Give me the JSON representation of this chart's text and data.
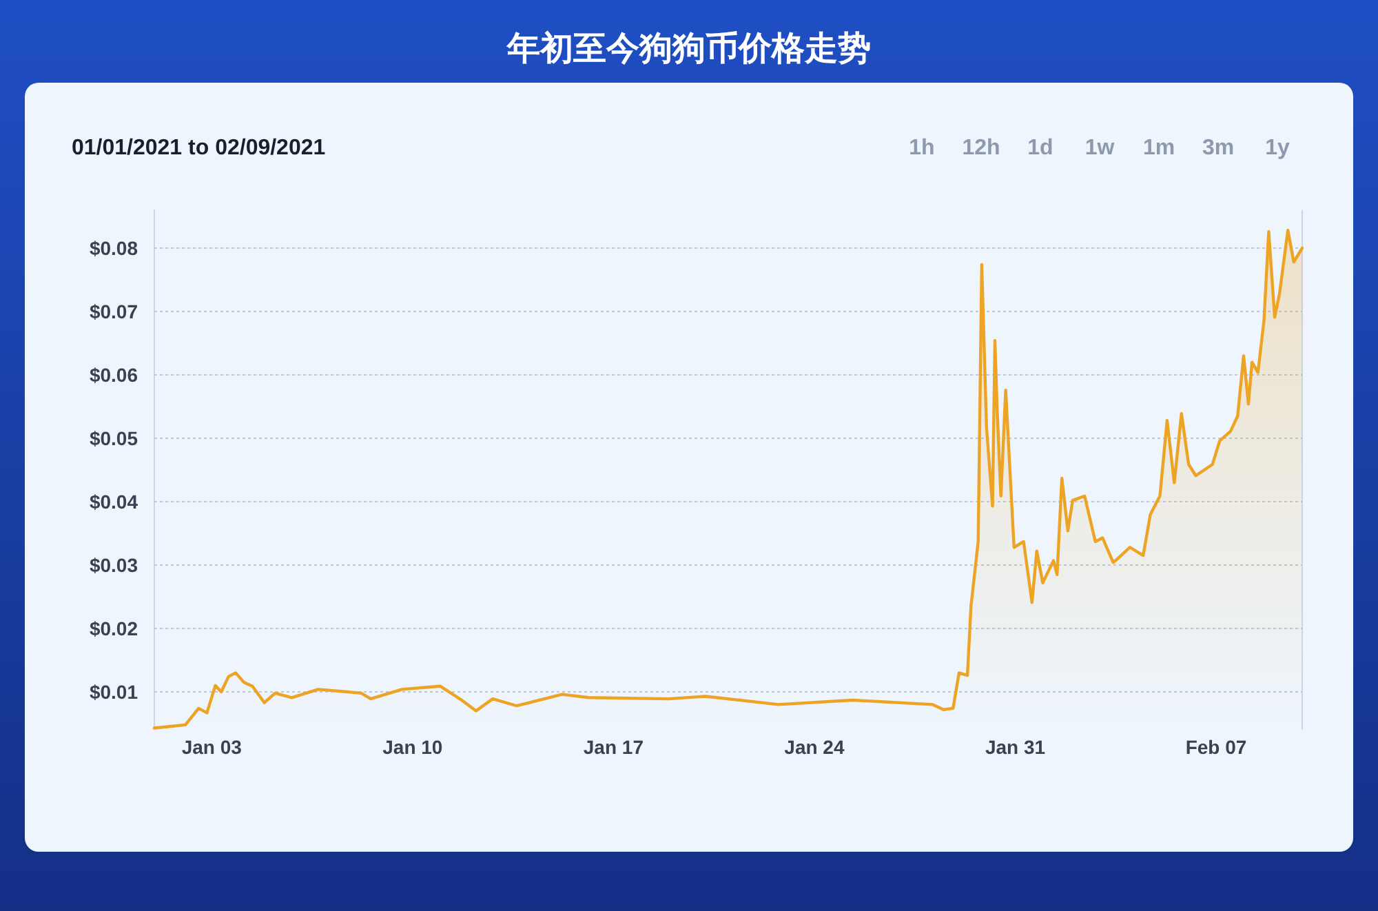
{
  "chart_data": {
    "type": "area",
    "title": "年初至今狗狗币价格走势",
    "subtitle": "01/01/2021 to 02/09/2021",
    "annotations": [
      "1h",
      "12h",
      "1d",
      "1w",
      "1m",
      "3m",
      "1y"
    ],
    "color": "#eda424",
    "grid": "y",
    "xlim": [
      "2021-01-01",
      "2021-02-10"
    ],
    "xticks": [
      {
        "value": "2021-01-03",
        "label": "Jan 03"
      },
      {
        "value": "2021-01-10",
        "label": "Jan 10"
      },
      {
        "value": "2021-01-17",
        "label": "Jan 17"
      },
      {
        "value": "2021-01-24",
        "label": "Jan 24"
      },
      {
        "value": "2021-01-31",
        "label": "Jan 31"
      },
      {
        "value": "2021-02-07",
        "label": "Feb 07"
      }
    ],
    "ylim": [
      0.004,
      0.086
    ],
    "yticks": [
      {
        "value": 0.01,
        "label": "$0.01"
      },
      {
        "value": 0.02,
        "label": "$0.02"
      },
      {
        "value": 0.03,
        "label": "$0.03"
      },
      {
        "value": 0.04,
        "label": "$0.04"
      },
      {
        "value": 0.05,
        "label": "$0.05"
      },
      {
        "value": 0.06,
        "label": "$0.06"
      },
      {
        "value": 0.07,
        "label": "$0.07"
      },
      {
        "value": 0.08,
        "label": "$0.08"
      }
    ],
    "x": [
      "2021-01-01T00:00",
      "2021-01-02T02:00",
      "2021-01-02T13:00",
      "2021-01-02T20:00",
      "2021-01-03T03:00",
      "2021-01-03T08:00",
      "2021-01-03T14:00",
      "2021-01-03T20:00",
      "2021-01-04T03:00",
      "2021-01-04T10:00",
      "2021-01-04T20:00",
      "2021-01-05T05:00",
      "2021-01-05T19:00",
      "2021-01-06T17:00",
      "2021-01-08T05:00",
      "2021-01-08T13:00",
      "2021-01-09T15:00",
      "2021-01-10T23:00",
      "2021-01-11T17:00",
      "2021-01-12T05:00",
      "2021-01-12T19:00",
      "2021-01-13T15:00",
      "2021-01-15T05:00",
      "2021-01-16T03:00",
      "2021-01-18T22:00",
      "2021-01-20T05:00",
      "2021-01-22T18:00",
      "2021-01-25T08:00",
      "2021-01-28T03:00",
      "2021-01-28T12:00",
      "2021-01-28T20:00",
      "2021-01-29T01:00",
      "2021-01-29T08:00",
      "2021-01-29T11:00",
      "2021-01-29T17:00",
      "2021-01-29T20:00",
      "2021-01-30T00:00",
      "2021-01-30T05:00",
      "2021-01-30T07:00",
      "2021-01-30T09:00",
      "2021-01-30T12:00",
      "2021-01-30T16:00",
      "2021-01-30T23:00",
      "2021-01-31T07:00",
      "2021-01-31T14:00",
      "2021-01-31T18:00",
      "2021-01-31T23:00",
      "2021-02-01T08:00",
      "2021-02-01T11:00",
      "2021-02-01T15:00",
      "2021-02-01T20:00",
      "2021-02-02T00:00",
      "2021-02-02T10:00",
      "2021-02-02T19:00",
      "2021-02-03T01:00",
      "2021-02-03T10:00",
      "2021-02-04T00:00",
      "2021-02-04T11:00",
      "2021-02-04T17:00",
      "2021-02-05T01:00",
      "2021-02-05T07:00",
      "2021-02-05T13:00",
      "2021-02-05T19:00",
      "2021-02-06T01:00",
      "2021-02-06T07:00",
      "2021-02-06T21:00",
      "2021-02-07T03:00",
      "2021-02-07T12:00",
      "2021-02-07T18:00",
      "2021-02-07T23:00",
      "2021-02-08T03:00",
      "2021-02-08T06:00",
      "2021-02-08T11:00",
      "2021-02-08T16:00",
      "2021-02-08T20:00",
      "2021-02-09T01:00",
      "2021-02-09T05:00",
      "2021-02-09T12:00",
      "2021-02-09T17:00",
      "2021-02-10T00:00"
    ],
    "values": [
      0.0043,
      0.0048,
      0.0074,
      0.0067,
      0.011,
      0.01,
      0.0124,
      0.013,
      0.0115,
      0.0109,
      0.0083,
      0.0098,
      0.0091,
      0.0104,
      0.0098,
      0.0089,
      0.0104,
      0.0109,
      0.0087,
      0.007,
      0.0089,
      0.0078,
      0.0096,
      0.0091,
      0.0089,
      0.0093,
      0.008,
      0.0087,
      0.008,
      0.0072,
      0.0074,
      0.013,
      0.0126,
      0.0235,
      0.0337,
      0.0774,
      0.0517,
      0.0393,
      0.0654,
      0.0539,
      0.0409,
      0.0576,
      0.0328,
      0.0337,
      0.0241,
      0.0322,
      0.0272,
      0.0307,
      0.0285,
      0.0437,
      0.0354,
      0.0402,
      0.0409,
      0.0337,
      0.0343,
      0.0304,
      0.0328,
      0.0315,
      0.038,
      0.0409,
      0.0528,
      0.043,
      0.0539,
      0.0459,
      0.0441,
      0.0459,
      0.0496,
      0.0511,
      0.0535,
      0.063,
      0.0554,
      0.062,
      0.0604,
      0.0685,
      0.0826,
      0.0691,
      0.0728,
      0.0828,
      0.0778,
      0.08
    ]
  }
}
